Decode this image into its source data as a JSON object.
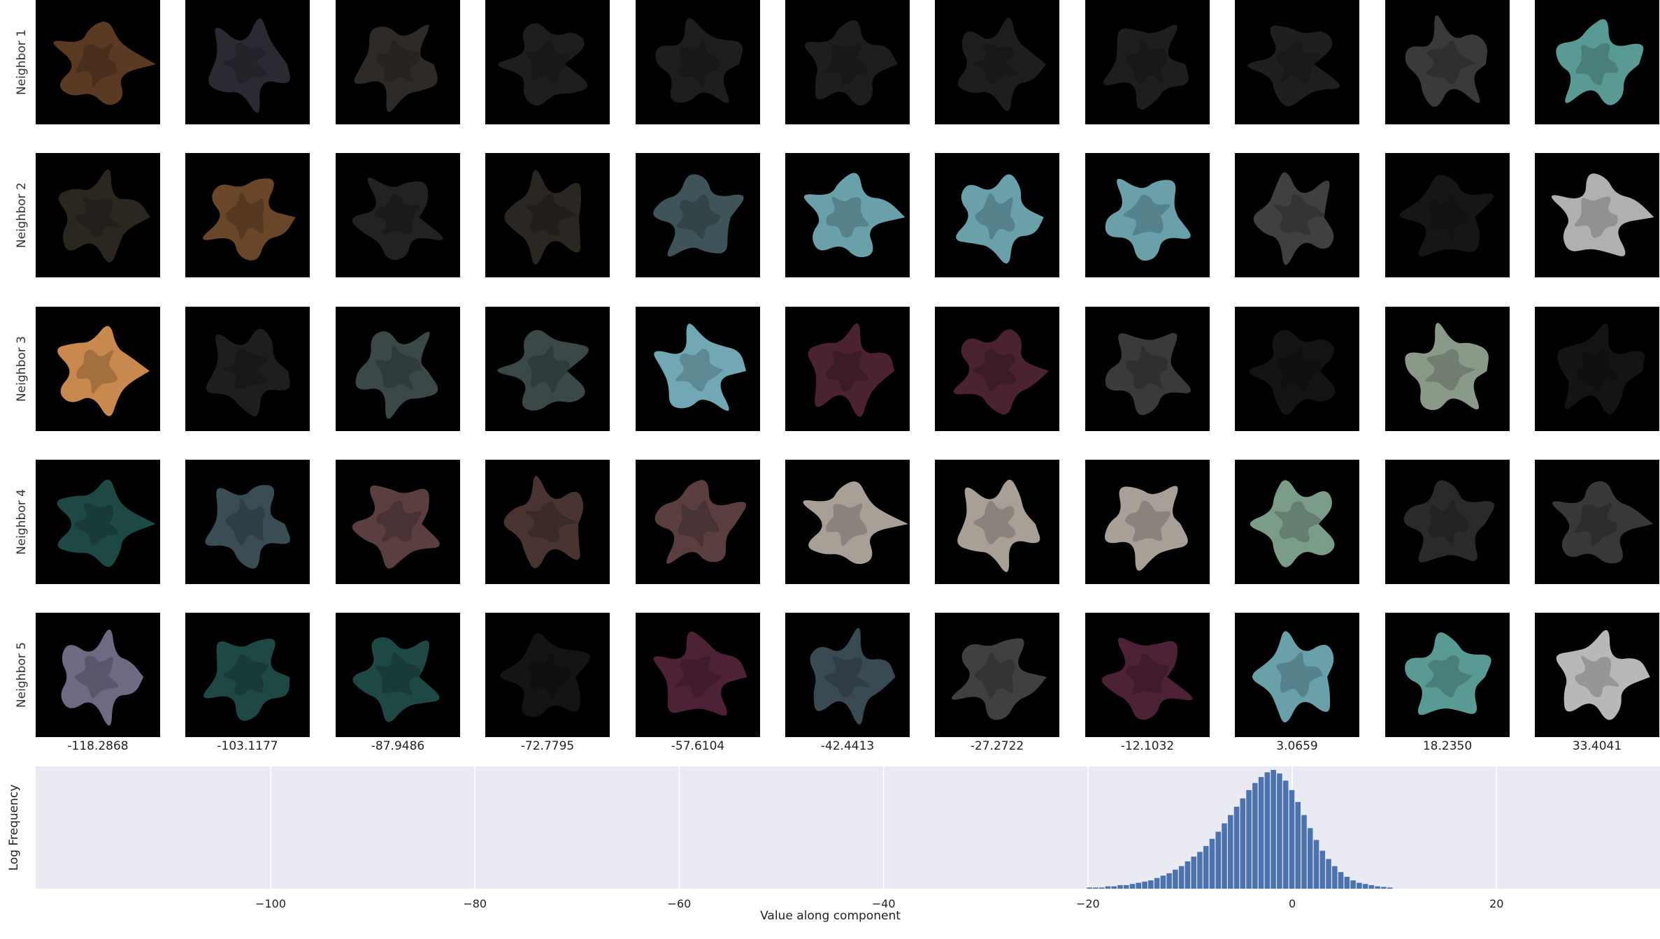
{
  "row_labels": [
    "Neighbor 1",
    "Neighbor 2",
    "Neighbor 3",
    "Neighbor 4",
    "Neighbor 5"
  ],
  "column_values": [
    "-118.2868",
    "-103.1177",
    "-87.9486",
    "-72.7795",
    "-57.6104",
    "-42.4413",
    "-27.2722",
    "-12.1032",
    "3.0659",
    "18.2350",
    "33.4041"
  ],
  "thumbnail_colors": [
    [
      "#5a3a22",
      "#2a2a33",
      "#2e2a28",
      "#1e1e1e",
      "#1e1e1e",
      "#1e1e1e",
      "#1e1e1e",
      "#1e1e1e",
      "#1f1f1f",
      "#3a3a3a",
      "#5a9a94"
    ],
    [
      "#2c2620",
      "#6a4628",
      "#222222",
      "#2a2622",
      "#3e5458",
      "#6aa0aa",
      "#6aa0aa",
      "#6aa0aa",
      "#404040",
      "#161616",
      "#b0b0b0"
    ],
    [
      "#c8884e",
      "#1e1e1e",
      "#3a4848",
      "#3a4848",
      "#72a8b4",
      "#4a2232",
      "#4a2232",
      "#3a3a3a",
      "#141414",
      "#8a9a88",
      "#141414"
    ],
    [
      "#1e4844",
      "#3a4c54",
      "#5a3e40",
      "#4a3432",
      "#5a3e40",
      "#a8a096",
      "#a8a096",
      "#a8a096",
      "#7a9c88",
      "#2a2a2a",
      "#383838"
    ],
    [
      "#6e6a84",
      "#1e4844",
      "#1e4844",
      "#141414",
      "#4e2236",
      "#3a4a52",
      "#404040",
      "#4e2236",
      "#6aa0aa",
      "#5a9a94",
      "#b8b8b8"
    ]
  ],
  "chart_data": {
    "type": "bar",
    "xlabel": "Value along component",
    "ylabel": "Log Frequency",
    "xlim": [
      -123,
      36
    ],
    "xticks": [
      -100,
      -80,
      -60,
      -40,
      -20,
      0,
      20
    ],
    "xtick_labels": [
      "−100",
      "−80",
      "−60",
      "−40",
      "−20",
      "0",
      "20"
    ],
    "bar_color": "#4c72b0",
    "background": "#eaeaf2",
    "grid": true,
    "bin_width": 0.6,
    "bins": [
      {
        "x": -19.8,
        "y": 0.01
      },
      {
        "x": -19.2,
        "y": 0.01
      },
      {
        "x": -18.6,
        "y": 0.01
      },
      {
        "x": -18.0,
        "y": 0.02
      },
      {
        "x": -17.4,
        "y": 0.02
      },
      {
        "x": -16.8,
        "y": 0.03
      },
      {
        "x": -16.2,
        "y": 0.03
      },
      {
        "x": -15.6,
        "y": 0.04
      },
      {
        "x": -15.0,
        "y": 0.05
      },
      {
        "x": -14.4,
        "y": 0.06
      },
      {
        "x": -13.8,
        "y": 0.07
      },
      {
        "x": -13.2,
        "y": 0.09
      },
      {
        "x": -12.6,
        "y": 0.11
      },
      {
        "x": -12.0,
        "y": 0.13
      },
      {
        "x": -11.4,
        "y": 0.16
      },
      {
        "x": -10.8,
        "y": 0.19
      },
      {
        "x": -10.2,
        "y": 0.23
      },
      {
        "x": -9.6,
        "y": 0.27
      },
      {
        "x": -9.0,
        "y": 0.31
      },
      {
        "x": -8.4,
        "y": 0.36
      },
      {
        "x": -7.8,
        "y": 0.42
      },
      {
        "x": -7.2,
        "y": 0.48
      },
      {
        "x": -6.6,
        "y": 0.55
      },
      {
        "x": -6.0,
        "y": 0.62
      },
      {
        "x": -5.4,
        "y": 0.69
      },
      {
        "x": -4.8,
        "y": 0.76
      },
      {
        "x": -4.2,
        "y": 0.83
      },
      {
        "x": -3.6,
        "y": 0.89
      },
      {
        "x": -3.0,
        "y": 0.94
      },
      {
        "x": -2.4,
        "y": 0.98
      },
      {
        "x": -1.8,
        "y": 1.0
      },
      {
        "x": -1.2,
        "y": 0.97
      },
      {
        "x": -0.6,
        "y": 0.91
      },
      {
        "x": 0.0,
        "y": 0.83
      },
      {
        "x": 0.6,
        "y": 0.73
      },
      {
        "x": 1.2,
        "y": 0.62
      },
      {
        "x": 1.8,
        "y": 0.51
      },
      {
        "x": 2.4,
        "y": 0.41
      },
      {
        "x": 3.0,
        "y": 0.32
      },
      {
        "x": 3.6,
        "y": 0.25
      },
      {
        "x": 4.2,
        "y": 0.19
      },
      {
        "x": 4.8,
        "y": 0.14
      },
      {
        "x": 5.4,
        "y": 0.1
      },
      {
        "x": 6.0,
        "y": 0.07
      },
      {
        "x": 6.6,
        "y": 0.05
      },
      {
        "x": 7.2,
        "y": 0.04
      },
      {
        "x": 7.8,
        "y": 0.03
      },
      {
        "x": 8.4,
        "y": 0.02
      },
      {
        "x": 9.0,
        "y": 0.015
      },
      {
        "x": 9.6,
        "y": 0.01
      }
    ]
  }
}
